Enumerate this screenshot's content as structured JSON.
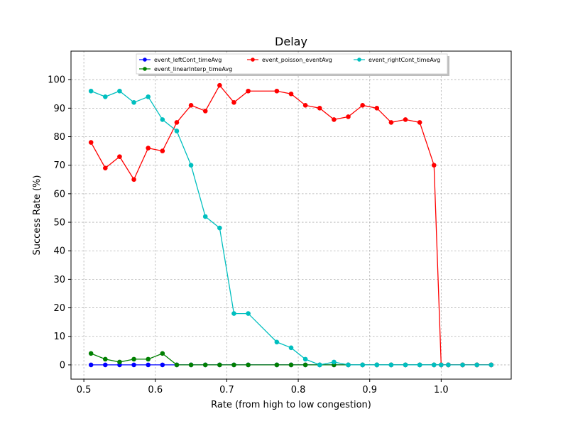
{
  "chart_data": {
    "type": "line",
    "title": "Delay",
    "xlabel": "Rate (from high to low congestion)",
    "ylabel": "Success Rate (%)",
    "xlim": [
      0.482,
      1.098
    ],
    "ylim": [
      -5,
      110
    ],
    "xticks": [
      0.5,
      0.6,
      0.7,
      0.8,
      0.9,
      1.0
    ],
    "xtick_labels": [
      "0.5",
      "0.6",
      "0.7",
      "0.8",
      "0.9",
      "1.0"
    ],
    "yticks": [
      0,
      10,
      20,
      30,
      40,
      50,
      60,
      70,
      80,
      90,
      100
    ],
    "ytick_labels": [
      "0",
      "10",
      "20",
      "30",
      "40",
      "50",
      "60",
      "70",
      "80",
      "90",
      "100"
    ],
    "grid": true,
    "legend_position": "top",
    "series": [
      {
        "name": "event_leftCont_timeAvg",
        "color": "#0000ff",
        "x": [
          0.51,
          0.53,
          0.55,
          0.57,
          0.59,
          0.61,
          0.63,
          0.65,
          0.67,
          0.69,
          0.71,
          0.73,
          0.77,
          0.79,
          0.81,
          0.83,
          0.85,
          0.87,
          0.89,
          0.91,
          0.93,
          0.95,
          0.97,
          0.99,
          1.0,
          1.01,
          1.03,
          1.05,
          1.07
        ],
        "y": [
          0,
          0,
          0,
          0,
          0,
          0,
          0,
          0,
          0,
          0,
          0,
          0,
          0,
          0,
          0,
          0,
          0,
          0,
          0,
          0,
          0,
          0,
          0,
          0,
          0,
          0,
          0,
          0,
          0
        ]
      },
      {
        "name": "event_linearInterp_timeAvg",
        "color": "#008000",
        "x": [
          0.51,
          0.53,
          0.55,
          0.57,
          0.59,
          0.61,
          0.63,
          0.65,
          0.67,
          0.69,
          0.71,
          0.73,
          0.77,
          0.79,
          0.81,
          0.83,
          0.85,
          0.87,
          0.89,
          0.91,
          0.93,
          0.95,
          0.97,
          0.99,
          1.0,
          1.01,
          1.03,
          1.05,
          1.07
        ],
        "y": [
          4,
          2,
          1,
          2,
          2,
          4,
          0,
          0,
          0,
          0,
          0,
          0,
          0,
          0,
          0,
          0,
          0,
          0,
          0,
          0,
          0,
          0,
          0,
          0,
          0,
          0,
          0,
          0,
          0
        ]
      },
      {
        "name": "event_poisson_eventAvg",
        "color": "#ff0000",
        "x": [
          0.51,
          0.53,
          0.55,
          0.57,
          0.59,
          0.61,
          0.63,
          0.65,
          0.67,
          0.69,
          0.71,
          0.73,
          0.77,
          0.79,
          0.81,
          0.83,
          0.85,
          0.87,
          0.89,
          0.91,
          0.93,
          0.95,
          0.97,
          0.99,
          1.0,
          1.01,
          1.03,
          1.05,
          1.07
        ],
        "y": [
          78,
          69,
          73,
          65,
          76,
          75,
          85,
          91,
          89,
          98,
          92,
          96,
          96,
          95,
          91,
          90,
          86,
          87,
          91,
          90,
          85,
          86,
          85,
          70,
          0,
          0,
          0,
          0,
          0
        ]
      },
      {
        "name": "event_rightCont_timeAvg",
        "color": "#00bfbf",
        "x": [
          0.51,
          0.53,
          0.55,
          0.57,
          0.59,
          0.61,
          0.63,
          0.65,
          0.67,
          0.69,
          0.71,
          0.73,
          0.77,
          0.79,
          0.81,
          0.83,
          0.85,
          0.87,
          0.89,
          0.91,
          0.93,
          0.95,
          0.97,
          0.99,
          1.0,
          1.01,
          1.03,
          1.05,
          1.07
        ],
        "y": [
          96,
          94,
          96,
          92,
          94,
          86,
          82,
          70,
          52,
          48,
          18,
          18,
          8,
          6,
          2,
          0,
          1,
          0,
          0,
          0,
          0,
          0,
          0,
          0,
          0,
          0,
          0,
          0,
          0
        ]
      }
    ]
  }
}
